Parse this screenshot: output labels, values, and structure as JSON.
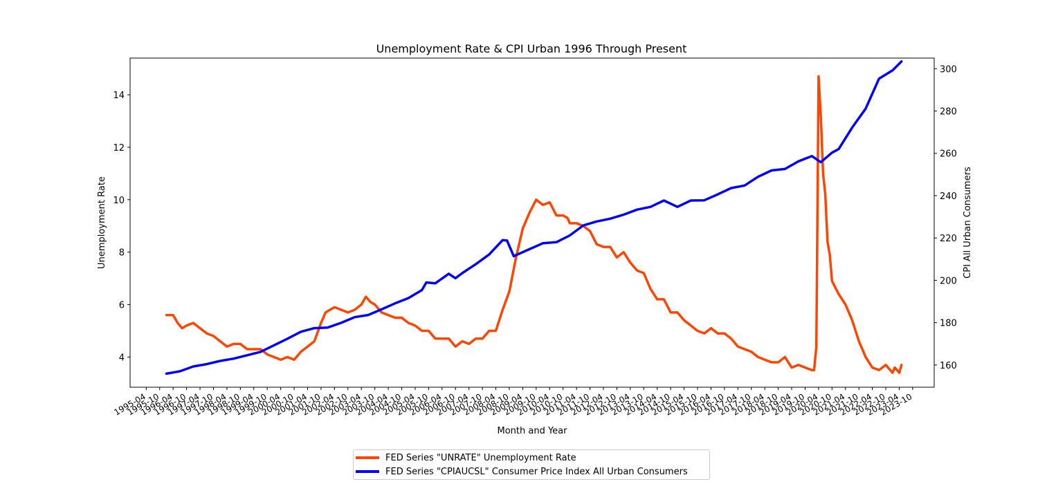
{
  "chart_data": {
    "type": "line",
    "title": "Unemployment Rate & CPI Urban 1996 Through Present",
    "xlabel": "Month and Year",
    "ylabel_left": "Unemployment Rate",
    "ylabel_right": "CPI All Urban Consumers",
    "ylim_left": [
      2.85,
      15.4
    ],
    "ylim_right": [
      149.5,
      305
    ],
    "yticks_left": [
      4,
      6,
      8,
      10,
      12,
      14
    ],
    "yticks_right": [
      160,
      180,
      200,
      220,
      240,
      260,
      280,
      300
    ],
    "xticks": [
      "1995-04",
      "1995-10",
      "1996-04",
      "1996-10",
      "1997-04",
      "1997-10",
      "1998-04",
      "1998-10",
      "1999-04",
      "1999-10",
      "2000-04",
      "2000-10",
      "2001-04",
      "2001-10",
      "2002-04",
      "2002-10",
      "2003-04",
      "2003-10",
      "2004-04",
      "2004-10",
      "2005-04",
      "2005-10",
      "2006-04",
      "2006-10",
      "2007-04",
      "2007-10",
      "2008-04",
      "2008-10",
      "2009-04",
      "2009-10",
      "2010-04",
      "2010-10",
      "2011-04",
      "2011-10",
      "2012-04",
      "2012-10",
      "2013-04",
      "2013-10",
      "2014-04",
      "2014-10",
      "2015-04",
      "2015-10",
      "2016-04",
      "2016-10",
      "2017-04",
      "2017-10",
      "2018-04",
      "2018-10",
      "2019-04",
      "2019-10",
      "2020-04",
      "2020-10",
      "2021-04",
      "2021-10",
      "2022-04",
      "2022-10",
      "2023-04",
      "2023-10"
    ],
    "grid": false,
    "legend_position": "bottom-center",
    "series": [
      {
        "name": "FED Series \"UNRATE\" Unemployment Rate",
        "color": "#ff4500",
        "axis": "left",
        "points": [
          [
            "1996-01",
            5.6
          ],
          [
            "1996-04",
            5.6
          ],
          [
            "1996-06",
            5.3
          ],
          [
            "1996-08",
            5.1
          ],
          [
            "1996-10",
            5.2
          ],
          [
            "1997-01",
            5.3
          ],
          [
            "1997-04",
            5.1
          ],
          [
            "1997-07",
            4.9
          ],
          [
            "1997-10",
            4.8
          ],
          [
            "1998-01",
            4.6
          ],
          [
            "1998-04",
            4.4
          ],
          [
            "1998-07",
            4.5
          ],
          [
            "1998-10",
            4.5
          ],
          [
            "1999-01",
            4.3
          ],
          [
            "1999-04",
            4.3
          ],
          [
            "1999-07",
            4.3
          ],
          [
            "1999-10",
            4.1
          ],
          [
            "2000-01",
            4.0
          ],
          [
            "2000-04",
            3.9
          ],
          [
            "2000-07",
            4.0
          ],
          [
            "2000-10",
            3.9
          ],
          [
            "2001-01",
            4.2
          ],
          [
            "2001-04",
            4.4
          ],
          [
            "2001-07",
            4.6
          ],
          [
            "2001-10",
            5.3
          ],
          [
            "2001-12",
            5.7
          ],
          [
            "2002-04",
            5.9
          ],
          [
            "2002-07",
            5.8
          ],
          [
            "2002-10",
            5.7
          ],
          [
            "2003-01",
            5.8
          ],
          [
            "2003-04",
            6.0
          ],
          [
            "2003-06",
            6.3
          ],
          [
            "2003-08",
            6.1
          ],
          [
            "2003-10",
            6.0
          ],
          [
            "2004-01",
            5.7
          ],
          [
            "2004-04",
            5.6
          ],
          [
            "2004-07",
            5.5
          ],
          [
            "2004-10",
            5.5
          ],
          [
            "2005-01",
            5.3
          ],
          [
            "2005-04",
            5.2
          ],
          [
            "2005-07",
            5.0
          ],
          [
            "2005-10",
            5.0
          ],
          [
            "2006-01",
            4.7
          ],
          [
            "2006-04",
            4.7
          ],
          [
            "2006-07",
            4.7
          ],
          [
            "2006-10",
            4.4
          ],
          [
            "2007-01",
            4.6
          ],
          [
            "2007-04",
            4.5
          ],
          [
            "2007-07",
            4.7
          ],
          [
            "2007-10",
            4.7
          ],
          [
            "2008-01",
            5.0
          ],
          [
            "2008-04",
            5.0
          ],
          [
            "2008-07",
            5.8
          ],
          [
            "2008-10",
            6.5
          ],
          [
            "2009-01",
            7.8
          ],
          [
            "2009-04",
            8.9
          ],
          [
            "2009-07",
            9.5
          ],
          [
            "2009-10",
            10.0
          ],
          [
            "2010-01",
            9.8
          ],
          [
            "2010-04",
            9.9
          ],
          [
            "2010-07",
            9.4
          ],
          [
            "2010-10",
            9.4
          ],
          [
            "2010-12",
            9.3
          ],
          [
            "2011-01",
            9.1
          ],
          [
            "2011-04",
            9.1
          ],
          [
            "2011-07",
            9.0
          ],
          [
            "2011-10",
            8.8
          ],
          [
            "2012-01",
            8.3
          ],
          [
            "2012-04",
            8.2
          ],
          [
            "2012-07",
            8.2
          ],
          [
            "2012-10",
            7.8
          ],
          [
            "2013-01",
            8.0
          ],
          [
            "2013-04",
            7.6
          ],
          [
            "2013-07",
            7.3
          ],
          [
            "2013-10",
            7.2
          ],
          [
            "2014-01",
            6.6
          ],
          [
            "2014-04",
            6.2
          ],
          [
            "2014-07",
            6.2
          ],
          [
            "2014-10",
            5.7
          ],
          [
            "2015-01",
            5.7
          ],
          [
            "2015-04",
            5.4
          ],
          [
            "2015-07",
            5.2
          ],
          [
            "2015-10",
            5.0
          ],
          [
            "2016-01",
            4.9
          ],
          [
            "2016-04",
            5.1
          ],
          [
            "2016-07",
            4.9
          ],
          [
            "2016-10",
            4.9
          ],
          [
            "2017-01",
            4.7
          ],
          [
            "2017-04",
            4.4
          ],
          [
            "2017-07",
            4.3
          ],
          [
            "2017-10",
            4.2
          ],
          [
            "2018-01",
            4.0
          ],
          [
            "2018-04",
            3.9
          ],
          [
            "2018-07",
            3.8
          ],
          [
            "2018-10",
            3.8
          ],
          [
            "2019-01",
            4.0
          ],
          [
            "2019-04",
            3.6
          ],
          [
            "2019-07",
            3.7
          ],
          [
            "2019-10",
            3.6
          ],
          [
            "2020-01",
            3.5
          ],
          [
            "2020-02",
            3.5
          ],
          [
            "2020-03",
            4.4
          ],
          [
            "2020-04",
            14.7
          ],
          [
            "2020-05",
            13.2
          ],
          [
            "2020-06",
            11.0
          ],
          [
            "2020-07",
            10.2
          ],
          [
            "2020-08",
            8.4
          ],
          [
            "2020-09",
            7.9
          ],
          [
            "2020-10",
            6.9
          ],
          [
            "2021-01",
            6.4
          ],
          [
            "2021-04",
            6.0
          ],
          [
            "2021-07",
            5.4
          ],
          [
            "2021-10",
            4.6
          ],
          [
            "2022-01",
            4.0
          ],
          [
            "2022-04",
            3.6
          ],
          [
            "2022-07",
            3.5
          ],
          [
            "2022-10",
            3.7
          ],
          [
            "2023-01",
            3.4
          ],
          [
            "2023-02",
            3.6
          ],
          [
            "2023-03",
            3.5
          ],
          [
            "2023-04",
            3.4
          ],
          [
            "2023-05",
            3.7
          ]
        ]
      },
      {
        "name": "FED Series \"CPIAUCSL\" Consumer Price Index All Urban Consumers",
        "color": "#0000ff",
        "axis": "right",
        "points": [
          [
            "1996-01",
            155.9
          ],
          [
            "1996-07",
            157.0
          ],
          [
            "1997-01",
            159.3
          ],
          [
            "1997-07",
            160.4
          ],
          [
            "1998-01",
            161.9
          ],
          [
            "1998-07",
            163.0
          ],
          [
            "1999-01",
            164.6
          ],
          [
            "1999-07",
            166.2
          ],
          [
            "2000-01",
            169.3
          ],
          [
            "2000-07",
            172.4
          ],
          [
            "2001-01",
            175.7
          ],
          [
            "2001-07",
            177.4
          ],
          [
            "2002-01",
            177.7
          ],
          [
            "2002-07",
            179.9
          ],
          [
            "2003-01",
            182.6
          ],
          [
            "2003-07",
            183.6
          ],
          [
            "2004-01",
            186.3
          ],
          [
            "2004-07",
            189.1
          ],
          [
            "2005-01",
            191.6
          ],
          [
            "2005-07",
            195.4
          ],
          [
            "2005-09",
            199.0
          ],
          [
            "2006-01",
            198.6
          ],
          [
            "2006-07",
            203.1
          ],
          [
            "2006-10",
            201.0
          ],
          [
            "2007-01",
            203.4
          ],
          [
            "2007-07",
            207.6
          ],
          [
            "2008-01",
            212.2
          ],
          [
            "2008-07",
            219.0
          ],
          [
            "2008-09",
            218.8
          ],
          [
            "2008-12",
            211.4
          ],
          [
            "2009-01",
            211.9
          ],
          [
            "2009-07",
            214.7
          ],
          [
            "2010-01",
            217.5
          ],
          [
            "2010-07",
            218.0
          ],
          [
            "2011-01",
            221.2
          ],
          [
            "2011-07",
            225.9
          ],
          [
            "2012-01",
            227.8
          ],
          [
            "2012-07",
            229.1
          ],
          [
            "2013-01",
            231.0
          ],
          [
            "2013-07",
            233.4
          ],
          [
            "2014-01",
            234.7
          ],
          [
            "2014-07",
            237.7
          ],
          [
            "2015-01",
            234.7
          ],
          [
            "2015-07",
            237.7
          ],
          [
            "2016-01",
            237.8
          ],
          [
            "2016-07",
            240.6
          ],
          [
            "2017-01",
            243.6
          ],
          [
            "2017-07",
            244.8
          ],
          [
            "2018-01",
            248.9
          ],
          [
            "2018-07",
            251.9
          ],
          [
            "2019-01",
            252.6
          ],
          [
            "2019-07",
            256.2
          ],
          [
            "2020-01",
            258.7
          ],
          [
            "2020-05",
            255.8
          ],
          [
            "2020-10",
            260.3
          ],
          [
            "2021-01",
            262.0
          ],
          [
            "2021-07",
            272.2
          ],
          [
            "2022-01",
            281.1
          ],
          [
            "2022-07",
            295.3
          ],
          [
            "2023-01",
            299.2
          ],
          [
            "2023-05",
            303.4
          ]
        ]
      }
    ]
  }
}
